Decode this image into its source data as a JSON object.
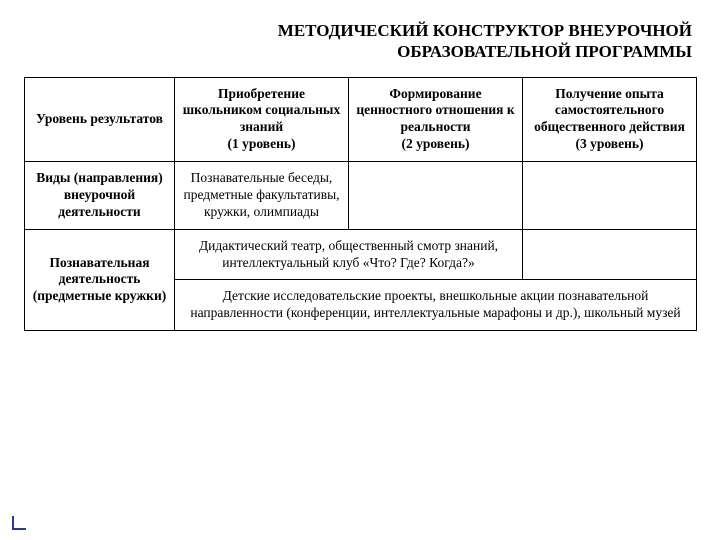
{
  "title_line1": "МЕТОДИЧЕСКИЙ КОНСТРУКТОР ВНЕУРОЧНОЙ",
  "title_line2": "ОБРАЗОВАТЕЛЬНОЙ ПРОГРАММЫ",
  "headers": {
    "row_label": "Уровень результатов",
    "c1": "Приобретение школьником социальных знаний\n(1 уровень)",
    "c2": "Формирование ценностного отношения к реальности\n(2 уровень)",
    "c3": "Получение опыта самостоятельного общественного действия\n(3 уровень)"
  },
  "left_labels": {
    "r2": "Виды (направления) внеурочной деятельности",
    "r3": "Познавательная деятельность (предметные кружки)"
  },
  "cells": {
    "r2c1": "Познавательные беседы, предметные факультативы, кружки, олимпиады",
    "r3_span2": "Дидактический театр, общественный смотр знаний, интеллектуальный клуб «Что? Где? Когда?»",
    "r4_span3": "Детские исследовательские проекты, внешкольные акции познавательной направленности (конференции, интеллектуальные марафоны и др.), школьный музей"
  },
  "style": {
    "title_fontsize": 17,
    "cell_fontsize": 13.5,
    "border_color": "#000000",
    "corner_color": "#2b3a8a",
    "background": "#ffffff"
  }
}
